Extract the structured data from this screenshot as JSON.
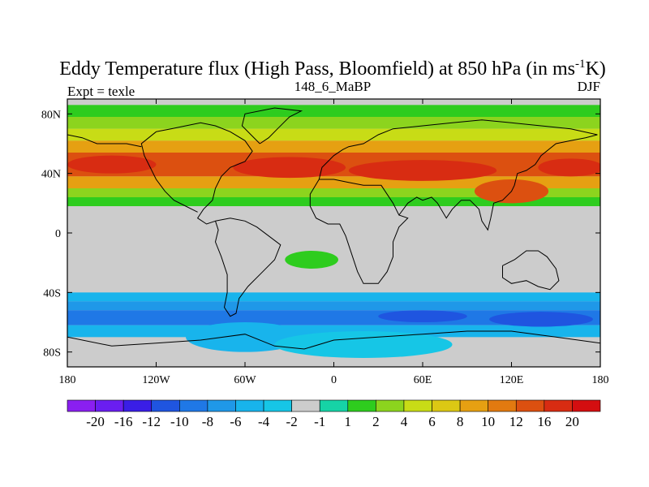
{
  "chart_data": {
    "type": "heatmap",
    "title_main": "Eddy Temperature flux (High Pass, Bloomfield) at 850 hPa (in ms",
    "title_sup": "-1",
    "title_end": "K)",
    "left_label": "Expt = texle",
    "center_label": "148_6_MaBP",
    "right_label": "DJF",
    "xlim": [
      -180,
      180
    ],
    "ylim": [
      -90,
      90
    ],
    "x_ticks": [
      {
        "v": -180,
        "label": "180"
      },
      {
        "v": -120,
        "label": "120W"
      },
      {
        "v": -60,
        "label": "60W"
      },
      {
        "v": 0,
        "label": "0"
      },
      {
        "v": 60,
        "label": "60E"
      },
      {
        "v": 120,
        "label": "120E"
      },
      {
        "v": 180,
        "label": "180"
      }
    ],
    "y_ticks": [
      {
        "v": 80,
        "label": "80N"
      },
      {
        "v": 40,
        "label": "40N"
      },
      {
        "v": 0,
        "label": "0"
      },
      {
        "v": -40,
        "label": "40S"
      },
      {
        "v": -80,
        "label": "80S"
      }
    ],
    "colorbar": {
      "colors": [
        "#8a1ff0",
        "#6a1ef0",
        "#3a1ee6",
        "#1f55e0",
        "#1f78e6",
        "#1f98e8",
        "#18b4ec",
        "#16c6e6",
        "#cccccc",
        "#16d3a6",
        "#2ecc1e",
        "#8cd41e",
        "#c8dc16",
        "#dcc814",
        "#e6a012",
        "#e27a10",
        "#dc5010",
        "#d82c12",
        "#d40e10"
      ],
      "labels": [
        "-20",
        "-16",
        "-12",
        "-10",
        "-8",
        "-6",
        "-4",
        "-2",
        "-1",
        "1",
        "2",
        "4",
        "6",
        "8",
        "10",
        "12",
        "16",
        "20"
      ]
    },
    "bands": [
      {
        "lat": [
          78,
          86
        ],
        "color": "#2ecc1e"
      },
      {
        "lat": [
          70,
          78
        ],
        "color": "#8cd41e"
      },
      {
        "lat": [
          62,
          70
        ],
        "color": "#c8dc16"
      },
      {
        "lat": [
          54,
          62
        ],
        "color": "#e6a012"
      },
      {
        "lat": [
          38,
          54
        ],
        "color": "#dc5010"
      },
      {
        "lat": [
          30,
          38
        ],
        "color": "#e6a012"
      },
      {
        "lat": [
          24,
          30
        ],
        "color": "#8cd41e"
      },
      {
        "lat": [
          18,
          24
        ],
        "color": "#2ecc1e"
      },
      {
        "lat": [
          -40,
          -46
        ],
        "color": "#18b4ec"
      },
      {
        "lat": [
          -46,
          -52
        ],
        "color": "#1f98e8"
      },
      {
        "lat": [
          -52,
          -62
        ],
        "color": "#1f78e6"
      },
      {
        "lat": [
          -62,
          -70
        ],
        "color": "#18b4ec"
      }
    ],
    "blobs": [
      {
        "lon": -150,
        "lat": 46,
        "rx": 30,
        "ry": 6,
        "color": "#d82c12"
      },
      {
        "lon": -30,
        "lat": 44,
        "rx": 38,
        "ry": 7,
        "color": "#d82c12"
      },
      {
        "lon": 60,
        "lat": 42,
        "rx": 50,
        "ry": 7,
        "color": "#d82c12"
      },
      {
        "lon": 160,
        "lat": 44,
        "rx": 22,
        "ry": 6,
        "color": "#d82c12"
      },
      {
        "lon": 120,
        "lat": 28,
        "rx": 25,
        "ry": 8,
        "color": "#dc5010"
      },
      {
        "lon": -15,
        "lat": -18,
        "rx": 18,
        "ry": 6,
        "color": "#2ecc1e"
      },
      {
        "lon": -60,
        "lat": -70,
        "rx": 40,
        "ry": 10,
        "color": "#18b4ec"
      },
      {
        "lon": 20,
        "lat": -75,
        "rx": 60,
        "ry": 9,
        "color": "#16c6e6"
      },
      {
        "lon": 140,
        "lat": -58,
        "rx": 35,
        "ry": 5,
        "color": "#1f55e0"
      },
      {
        "lon": 60,
        "lat": -56,
        "rx": 30,
        "ry": 4,
        "color": "#1f55e0"
      }
    ],
    "coastlines": [
      [
        [
          -120,
          68
        ],
        [
          -110,
          70
        ],
        [
          -100,
          72
        ],
        [
          -90,
          74
        ],
        [
          -80,
          72
        ],
        [
          -70,
          68
        ],
        [
          -60,
          62
        ],
        [
          -55,
          55
        ],
        [
          -60,
          48
        ],
        [
          -70,
          44
        ],
        [
          -76,
          38
        ],
        [
          -80,
          30
        ],
        [
          -82,
          22
        ],
        [
          -88,
          16
        ],
        [
          -92,
          10
        ],
        [
          -86,
          6
        ],
        [
          -80,
          8
        ]
      ],
      [
        [
          -120,
          68
        ],
        [
          -130,
          60
        ],
        [
          -128,
          52
        ],
        [
          -124,
          44
        ],
        [
          -120,
          36
        ],
        [
          -114,
          28
        ],
        [
          -108,
          22
        ],
        [
          -100,
          18
        ],
        [
          -92,
          14
        ]
      ],
      [
        [
          -80,
          8
        ],
        [
          -78,
          2
        ],
        [
          -80,
          -6
        ],
        [
          -76,
          -16
        ],
        [
          -72,
          -28
        ],
        [
          -72,
          -40
        ],
        [
          -74,
          -50
        ],
        [
          -70,
          -56
        ],
        [
          -66,
          -54
        ],
        [
          -64,
          -44
        ],
        [
          -58,
          -36
        ],
        [
          -48,
          -26
        ],
        [
          -40,
          -18
        ],
        [
          -36,
          -8
        ],
        [
          -44,
          -2
        ],
        [
          -52,
          4
        ],
        [
          -60,
          8
        ],
        [
          -70,
          10
        ],
        [
          -80,
          8
        ]
      ],
      [
        [
          -50,
          60
        ],
        [
          -44,
          64
        ],
        [
          -38,
          70
        ],
        [
          -30,
          78
        ],
        [
          -22,
          82
        ],
        [
          -40,
          84
        ],
        [
          -60,
          80
        ],
        [
          -62,
          72
        ],
        [
          -56,
          66
        ],
        [
          -50,
          60
        ]
      ],
      [
        [
          -10,
          36
        ],
        [
          -8,
          44
        ],
        [
          -4,
          48
        ],
        [
          0,
          52
        ],
        [
          6,
          56
        ],
        [
          10,
          58
        ],
        [
          20,
          60
        ],
        [
          30,
          66
        ],
        [
          40,
          70
        ],
        [
          60,
          72
        ],
        [
          80,
          74
        ],
        [
          100,
          76
        ],
        [
          120,
          74
        ],
        [
          140,
          72
        ],
        [
          160,
          70
        ],
        [
          178,
          66
        ]
      ],
      [
        [
          -10,
          36
        ],
        [
          0,
          36
        ],
        [
          10,
          34
        ],
        [
          20,
          32
        ],
        [
          32,
          32
        ],
        [
          36,
          26
        ],
        [
          40,
          20
        ],
        [
          44,
          12
        ],
        [
          50,
          10
        ],
        [
          44,
          4
        ],
        [
          40,
          -6
        ],
        [
          40,
          -16
        ],
        [
          36,
          -26
        ],
        [
          30,
          -34
        ],
        [
          20,
          -34
        ],
        [
          16,
          -26
        ],
        [
          12,
          -14
        ],
        [
          8,
          -2
        ],
        [
          4,
          6
        ],
        [
          -4,
          6
        ],
        [
          -12,
          10
        ],
        [
          -16,
          18
        ],
        [
          -16,
          26
        ],
        [
          -10,
          36
        ]
      ],
      [
        [
          44,
          12
        ],
        [
          50,
          20
        ],
        [
          56,
          24
        ],
        [
          60,
          22
        ],
        [
          66,
          24
        ],
        [
          70,
          20
        ],
        [
          76,
          10
        ],
        [
          80,
          16
        ],
        [
          86,
          22
        ],
        [
          92,
          22
        ],
        [
          98,
          16
        ],
        [
          100,
          8
        ],
        [
          104,
          2
        ],
        [
          106,
          10
        ],
        [
          108,
          20
        ],
        [
          114,
          22
        ],
        [
          120,
          28
        ],
        [
          122,
          32
        ],
        [
          124,
          40
        ],
        [
          130,
          42
        ],
        [
          136,
          46
        ],
        [
          140,
          52
        ],
        [
          150,
          60
        ],
        [
          160,
          62
        ],
        [
          170,
          64
        ],
        [
          178,
          66
        ]
      ],
      [
        [
          114,
          -22
        ],
        [
          122,
          -18
        ],
        [
          130,
          -12
        ],
        [
          138,
          -12
        ],
        [
          144,
          -16
        ],
        [
          150,
          -24
        ],
        [
          152,
          -32
        ],
        [
          146,
          -38
        ],
        [
          138,
          -36
        ],
        [
          130,
          -32
        ],
        [
          120,
          -34
        ],
        [
          114,
          -30
        ],
        [
          114,
          -22
        ]
      ],
      [
        [
          -180,
          -70
        ],
        [
          -150,
          -76
        ],
        [
          -120,
          -74
        ],
        [
          -90,
          -72
        ],
        [
          -60,
          -68
        ],
        [
          -40,
          -76
        ],
        [
          -20,
          -78
        ],
        [
          0,
          -72
        ],
        [
          30,
          -70
        ],
        [
          60,
          -68
        ],
        [
          90,
          -66
        ],
        [
          120,
          -66
        ],
        [
          150,
          -70
        ],
        [
          180,
          -74
        ]
      ],
      [
        [
          -180,
          66
        ],
        [
          -170,
          64
        ],
        [
          -160,
          60
        ],
        [
          -150,
          60
        ],
        [
          -140,
          60
        ],
        [
          -130,
          58
        ]
      ]
    ]
  }
}
